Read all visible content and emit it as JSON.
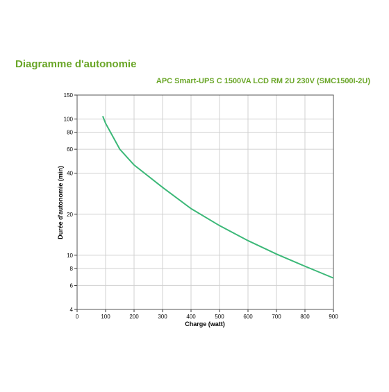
{
  "chart_data": {
    "type": "line",
    "title": "Diagramme d'autonomie",
    "subtitle": "APC Smart-UPS C 1500VA LCD RM 2U 230V (SMC1500I-2U)",
    "x_label": "Charge (watt)",
    "y_label": "Durée d'autonomie (min)",
    "x": [
      90,
      100,
      150,
      200,
      300,
      400,
      500,
      600,
      700,
      800,
      900
    ],
    "series": [
      {
        "name": "SMC1500I-2U",
        "color": "#3cb878",
        "values": [
          105,
          93,
          60,
          46,
          31.5,
          22,
          16.5,
          12.8,
          10.2,
          8.3,
          6.8
        ]
      }
    ],
    "xlim": [
      0,
      900
    ],
    "xticks": [
      0,
      100,
      200,
      300,
      400,
      500,
      600,
      700,
      800,
      900
    ],
    "ylim": [
      4,
      150
    ],
    "yticks": [
      4,
      6,
      8,
      10,
      20,
      40,
      60,
      80,
      100,
      150
    ],
    "log_y": true,
    "grid": true
  }
}
